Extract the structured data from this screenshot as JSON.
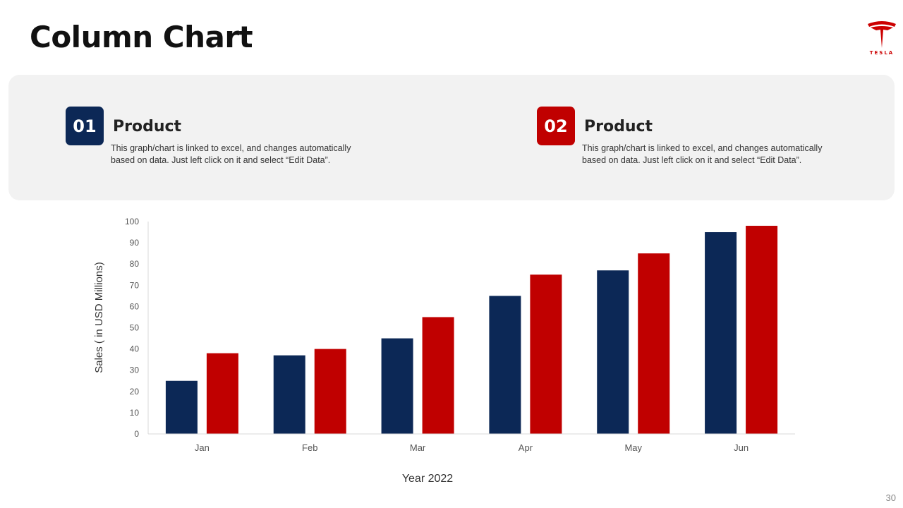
{
  "slide": {
    "title": "Column Chart",
    "logo_text": "TESLA",
    "page_number": "30"
  },
  "cards": [
    {
      "number": "01",
      "title": "Product",
      "description": "This graph/chart is linked to excel, and changes automatically based on data. Just left click on it and select “Edit Data”.",
      "color": "#0c2856"
    },
    {
      "number": "02",
      "title": "Product",
      "description": "This graph/chart is linked to excel, and changes automatically based on data. Just left click on it and select “Edit Data”.",
      "color": "#c00000"
    }
  ],
  "brand": {
    "logo_color": "#cc0000"
  },
  "chart_data": {
    "type": "bar",
    "title": "",
    "xlabel": "Year 2022",
    "ylabel": "Sales ( in USD Millions)",
    "categories": [
      "Jan",
      "Feb",
      "Mar",
      "Apr",
      "May",
      "Jun"
    ],
    "series": [
      {
        "values": [
          25,
          37,
          45,
          65,
          77,
          95
        ],
        "color": "#0c2856"
      },
      {
        "values": [
          38,
          40,
          55,
          75,
          85,
          98
        ],
        "color": "#c00000"
      }
    ],
    "ylim": [
      0,
      100
    ],
    "yticks": [
      0,
      10,
      20,
      30,
      40,
      50,
      60,
      70,
      80,
      90,
      100
    ],
    "grid": false,
    "legend": "none"
  }
}
